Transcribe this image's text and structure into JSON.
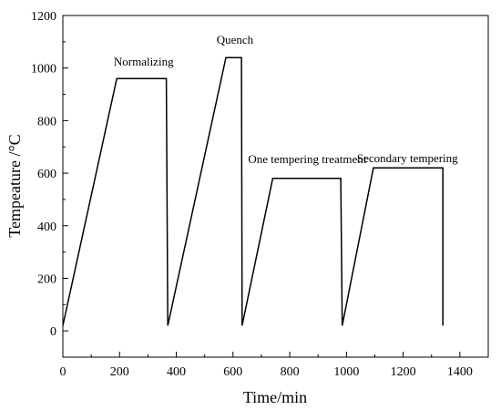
{
  "chart_data": {
    "type": "line",
    "title": "",
    "xlabel": "Time/min",
    "ylabel": "Tempeature /°C",
    "xlim": [
      0,
      1500
    ],
    "ylim": [
      -100,
      1200
    ],
    "xticks": [
      0,
      200,
      400,
      600,
      800,
      1000,
      1200,
      1400
    ],
    "yticks": [
      0,
      200,
      400,
      600,
      800,
      1000,
      1200
    ],
    "grid": false,
    "series": [
      {
        "x": [
          0,
          190,
          365,
          370,
          575,
          630,
          632,
          740,
          980,
          985,
          1095,
          1340,
          1340
        ],
        "y": [
          20,
          960,
          960,
          20,
          1040,
          1040,
          20,
          580,
          580,
          20,
          620,
          620,
          20
        ]
      }
    ],
    "annotations": [
      {
        "text": "Normalizing",
        "x": 285,
        "y": 1010
      },
      {
        "text": "Quench",
        "x": 607,
        "y": 1092
      },
      {
        "text": "One tempering treatment",
        "x": 862,
        "y": 638
      },
      {
        "text": "Secondary tempering",
        "x": 1215,
        "y": 642
      }
    ]
  }
}
